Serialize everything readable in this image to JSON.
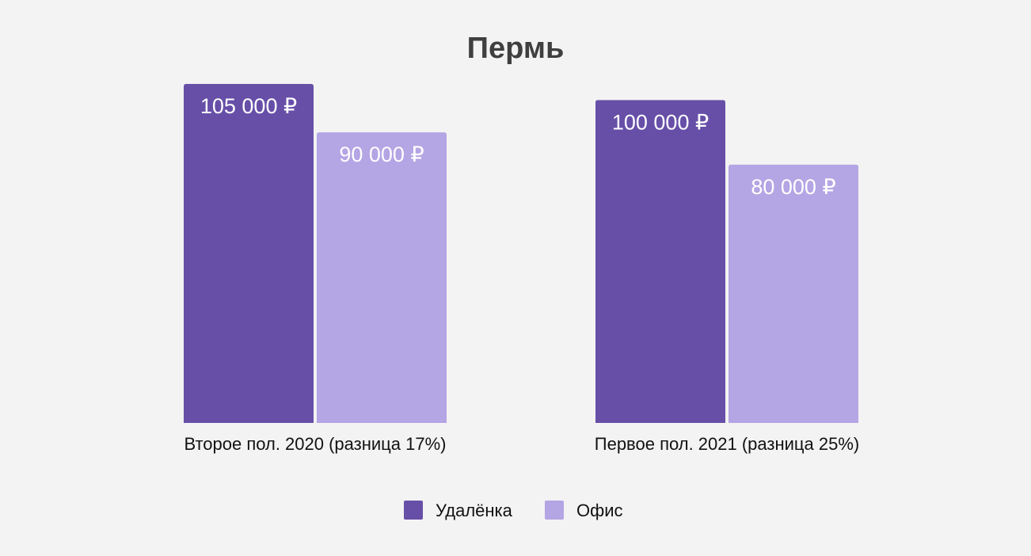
{
  "chart_data": {
    "type": "bar",
    "title": "Пермь",
    "categories": [
      "Второе пол. 2020 (разница 17%)",
      "Первое пол. 2021 (разница 25%)"
    ],
    "series": [
      {
        "name": "Удалёнка",
        "color": "#674fa8",
        "values": [
          105000,
          100000
        ],
        "value_labels": [
          "105 000 ₽",
          "100 000 ₽"
        ]
      },
      {
        "name": "Офис",
        "color": "#b4a5e4",
        "values": [
          90000,
          80000
        ],
        "value_labels": [
          "90 000 ₽",
          "80 000 ₽"
        ]
      }
    ],
    "xlabel": "",
    "ylabel": "",
    "ylim": [
      0,
      105000
    ],
    "grid": false,
    "legend_position": "bottom-center"
  }
}
